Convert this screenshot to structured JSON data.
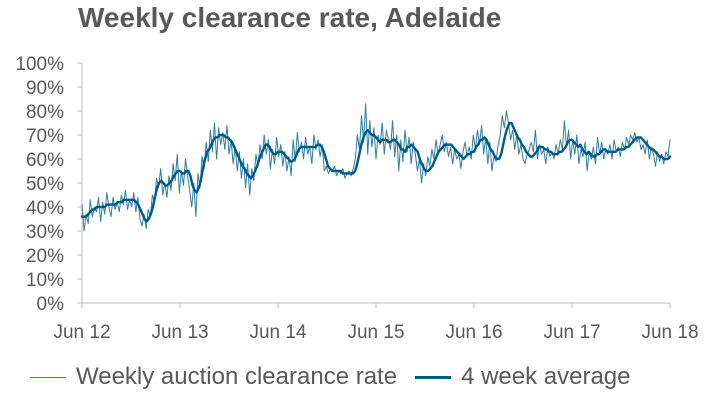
{
  "chart_data": {
    "type": "line",
    "title": "Weekly clearance rate, Adelaide",
    "xlabel": "",
    "ylabel": "",
    "ylim": [
      0,
      100
    ],
    "yticks": [
      "0%",
      "10%",
      "20%",
      "30%",
      "40%",
      "50%",
      "60%",
      "70%",
      "80%",
      "90%",
      "100%"
    ],
    "xticks": [
      "Jun 12",
      "Jun 13",
      "Jun 14",
      "Jun 15",
      "Jun 16",
      "Jun 17",
      "Jun 18"
    ],
    "xrange_years": [
      2012.42,
      2018.42
    ],
    "grid": false,
    "legend_position": "bottom",
    "colors": {
      "weekly": "#2E7FA3",
      "average": "#005A87",
      "axis": "#BFBFBF",
      "text": "#595959"
    },
    "series": [
      {
        "name": "Weekly auction clearance rate",
        "style": "thin",
        "values": [
          41,
          30,
          37,
          33,
          43,
          36,
          40,
          38,
          44,
          34,
          42,
          37,
          46,
          40,
          36,
          44,
          39,
          42,
          38,
          45,
          41,
          47,
          39,
          43,
          40,
          46,
          38,
          44,
          35,
          32,
          37,
          31,
          39,
          36,
          45,
          42,
          52,
          48,
          56,
          45,
          50,
          44,
          53,
          47,
          58,
          51,
          62,
          46,
          55,
          49,
          60,
          53,
          47,
          40,
          50,
          36,
          54,
          48,
          61,
          56,
          67,
          59,
          72,
          63,
          75,
          60,
          73,
          66,
          71,
          64,
          74,
          62,
          68,
          58,
          65,
          55,
          63,
          52,
          60,
          48,
          58,
          45,
          56,
          51,
          62,
          57,
          66,
          60,
          70,
          62,
          68,
          56,
          64,
          58,
          69,
          61,
          66,
          57,
          63,
          55,
          61,
          53,
          68,
          59,
          71,
          63,
          67,
          60,
          69,
          62,
          65,
          58,
          70,
          64,
          68,
          61,
          66,
          55,
          57,
          54,
          56,
          55,
          57,
          53,
          55,
          54,
          56,
          52,
          54,
          55,
          53,
          56,
          60,
          70,
          64,
          78,
          67,
          83,
          62,
          76,
          65,
          73,
          60,
          70,
          66,
          75,
          62,
          72,
          68,
          64,
          76,
          61,
          70,
          55,
          68,
          59,
          72,
          63,
          69,
          58,
          67,
          62,
          55,
          60,
          50,
          58,
          53,
          61,
          57,
          64,
          60,
          68,
          62,
          66,
          70,
          63,
          67,
          61,
          65,
          58,
          64,
          60,
          62,
          56,
          63,
          67,
          61,
          65,
          60,
          70,
          64,
          72,
          66,
          74,
          62,
          69,
          58,
          67,
          55,
          61,
          59,
          66,
          70,
          78,
          73,
          80,
          75,
          68,
          72,
          64,
          70,
          62,
          66,
          60,
          58,
          62,
          64,
          67,
          63,
          72,
          60,
          66,
          62,
          64,
          58,
          65,
          61,
          63,
          60,
          66,
          62,
          68,
          64,
          76,
          65,
          72,
          60,
          68,
          62,
          70,
          58,
          64,
          61,
          67,
          55,
          63,
          60,
          65,
          58,
          69,
          62,
          67,
          60,
          64,
          62,
          66,
          60,
          68,
          63,
          65,
          61,
          67,
          64,
          69,
          66,
          70,
          68,
          71,
          67,
          69,
          64,
          66,
          62,
          68,
          60,
          65,
          62,
          57,
          63,
          59,
          62,
          58,
          63,
          61,
          68
        ]
      },
      {
        "name": "4 week average",
        "style": "thick",
        "values": [
          36,
          36,
          36,
          37,
          38,
          39,
          39,
          40,
          40,
          40,
          40,
          40,
          41,
          41,
          41,
          41,
          41,
          42,
          42,
          42,
          43,
          43,
          43,
          43,
          43,
          43,
          42,
          41,
          39,
          37,
          35,
          34,
          35,
          37,
          40,
          44,
          48,
          50,
          51,
          50,
          49,
          49,
          50,
          51,
          53,
          54,
          55,
          55,
          54,
          54,
          55,
          55,
          53,
          49,
          47,
          46,
          48,
          51,
          56,
          60,
          63,
          64,
          66,
          68,
          69,
          69,
          70,
          70,
          70,
          69,
          69,
          68,
          67,
          65,
          63,
          61,
          59,
          57,
          56,
          54,
          53,
          52,
          53,
          55,
          57,
          60,
          62,
          64,
          66,
          66,
          65,
          63,
          62,
          62,
          63,
          63,
          63,
          62,
          61,
          60,
          59,
          59,
          60,
          62,
          64,
          65,
          65,
          65,
          65,
          65,
          65,
          65,
          65,
          66,
          66,
          65,
          63,
          60,
          57,
          56,
          55,
          55,
          55,
          55,
          55,
          54,
          54,
          54,
          54,
          54,
          54,
          55,
          58,
          62,
          66,
          69,
          71,
          72,
          71,
          70,
          70,
          69,
          68,
          67,
          68,
          68,
          68,
          67,
          67,
          68,
          68,
          67,
          66,
          64,
          64,
          63,
          65,
          65,
          66,
          65,
          64,
          63,
          60,
          58,
          56,
          55,
          55,
          56,
          57,
          59,
          61,
          63,
          64,
          65,
          66,
          66,
          66,
          66,
          65,
          64,
          63,
          62,
          61,
          60,
          61,
          62,
          62,
          63,
          63,
          65,
          66,
          68,
          68,
          69,
          68,
          66,
          64,
          63,
          61,
          60,
          60,
          62,
          66,
          70,
          73,
          75,
          75,
          73,
          71,
          69,
          68,
          66,
          65,
          63,
          62,
          61,
          61,
          62,
          63,
          65,
          65,
          65,
          64,
          64,
          63,
          63,
          62,
          62,
          62,
          63,
          63,
          64,
          65,
          67,
          68,
          68,
          67,
          66,
          65,
          66,
          64,
          63,
          62,
          63,
          62,
          61,
          61,
          62,
          62,
          63,
          64,
          64,
          63,
          63,
          63,
          63,
          63,
          64,
          64,
          64,
          64,
          65,
          65,
          66,
          67,
          68,
          69,
          69,
          69,
          68,
          67,
          66,
          65,
          64,
          64,
          63,
          62,
          61,
          61,
          60,
          60,
          60,
          61
        ]
      }
    ]
  }
}
